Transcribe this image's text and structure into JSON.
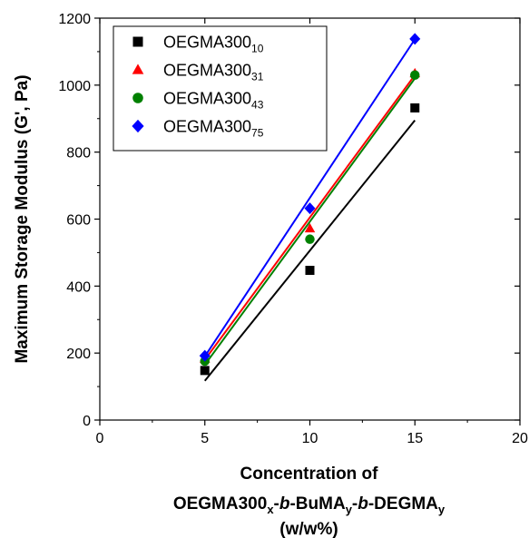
{
  "chart_data": {
    "type": "scatter",
    "xlabel_lines": [
      [
        {
          "t": "Concentration of"
        }
      ],
      [
        {
          "t": "OEGMA300"
        },
        {
          "t": "x",
          "sub": true
        },
        {
          "t": "-"
        },
        {
          "t": "b",
          "italic": true
        },
        {
          "t": "-BuMA"
        },
        {
          "t": "y",
          "sub": true
        },
        {
          "t": "-"
        },
        {
          "t": "b",
          "italic": true
        },
        {
          "t": "-DEGMA"
        },
        {
          "t": "y",
          "sub": true
        }
      ],
      [
        {
          "t": "(w/w%)"
        }
      ]
    ],
    "ylabel": "Maximum Storage Modulus (G', Pa)",
    "xlim": [
      0,
      20
    ],
    "ylim": [
      0,
      1200
    ],
    "xticks": [
      0,
      5,
      10,
      15,
      20
    ],
    "yticks": [
      0,
      200,
      400,
      600,
      800,
      1000,
      1200
    ],
    "legend_position": "top-left",
    "series": [
      {
        "name": "OEGMA300",
        "subscript": "10",
        "marker": "square",
        "color": "#000000",
        "x": [
          5,
          10,
          15
        ],
        "y": [
          148,
          447,
          932
        ],
        "fit": [
          [
            5,
            117
          ],
          [
            15,
            895
          ]
        ]
      },
      {
        "name": "OEGMA300",
        "subscript": "31",
        "marker": "triangle",
        "color": "#ff0000",
        "x": [
          5,
          10,
          15
        ],
        "y": [
          183,
          572,
          1035
        ],
        "fit": [
          [
            5,
            180
          ],
          [
            15,
            1030
          ]
        ]
      },
      {
        "name": "OEGMA300",
        "subscript": "43",
        "marker": "circle",
        "color": "#008000",
        "x": [
          5,
          10,
          15
        ],
        "y": [
          176,
          540,
          1030
        ],
        "fit": [
          [
            5,
            165
          ],
          [
            15,
            1020
          ]
        ]
      },
      {
        "name": "OEGMA300",
        "subscript": "75",
        "marker": "diamond",
        "color": "#0000ff",
        "x": [
          5,
          10,
          15
        ],
        "y": [
          192,
          632,
          1138
        ],
        "fit": [
          [
            5,
            190
          ],
          [
            15,
            1137
          ]
        ]
      }
    ]
  }
}
